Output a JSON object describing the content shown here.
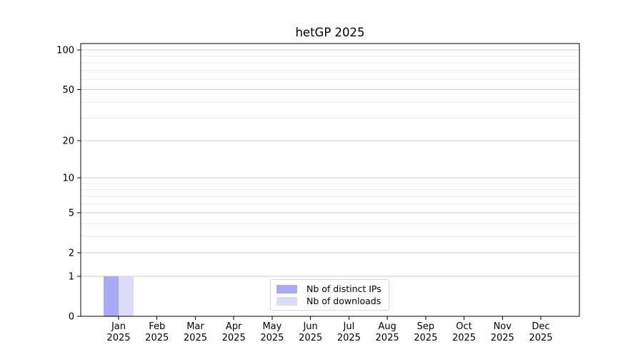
{
  "figure": {
    "background": "#ffffff"
  },
  "chart_data": {
    "type": "bar",
    "title": "hetGP 2025",
    "xlabel": "",
    "ylabel": "",
    "categories": [
      "Jan 2025",
      "Feb 2025",
      "Mar 2025",
      "Apr 2025",
      "May 2025",
      "Jun 2025",
      "Jul 2025",
      "Aug 2025",
      "Sep 2025",
      "Oct 2025",
      "Nov 2025",
      "Dec 2025"
    ],
    "series": [
      {
        "name": "Nb of distinct IPs",
        "color": "#aaaaf8",
        "values": [
          1,
          0,
          0,
          0,
          0,
          0,
          0,
          0,
          0,
          0,
          0,
          0
        ]
      },
      {
        "name": "Nb of downloads",
        "color": "#dcdcf8",
        "values": [
          1,
          0,
          0,
          0,
          0,
          0,
          0,
          0,
          0,
          0,
          0,
          0
        ]
      }
    ],
    "yscale": "log1p",
    "ylim": [
      0,
      112
    ],
    "yticks": [
      0,
      1,
      2,
      5,
      10,
      20,
      50,
      100
    ],
    "yticks_minor": [
      3,
      4,
      6,
      7,
      8,
      9,
      30,
      40,
      60,
      70,
      80,
      90
    ],
    "grid": {
      "axis": "y",
      "which": "major+minor",
      "major_color": "#cccccc",
      "minor_color": "#ebebeb"
    },
    "axis_color": "#000000",
    "legend": {
      "position": "inside-bottom-center",
      "border_color": "#d4d4d4",
      "background": "#ffffff"
    }
  }
}
